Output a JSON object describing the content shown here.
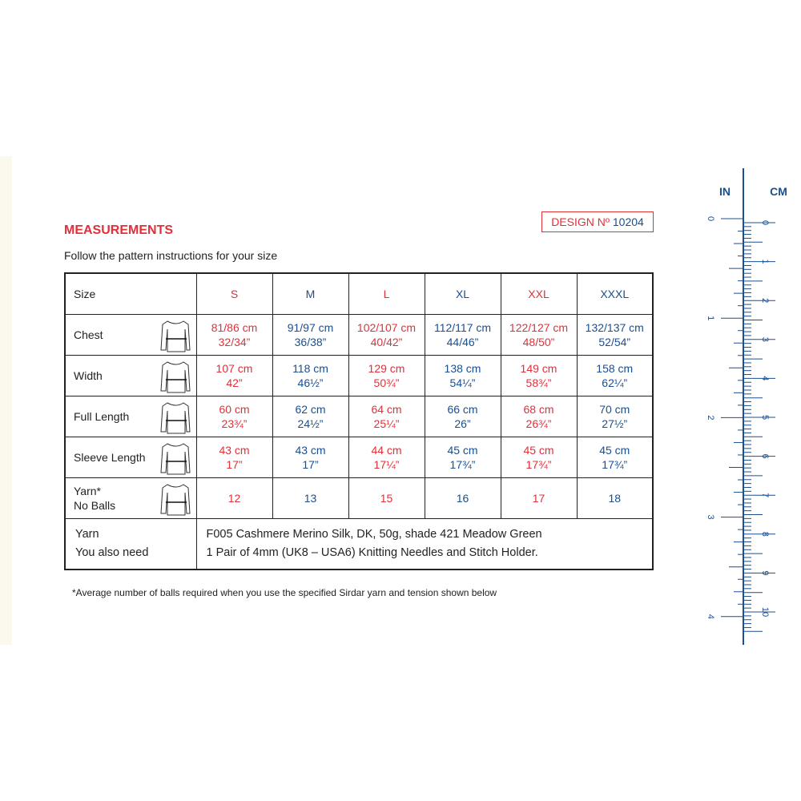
{
  "heading": "MEASUREMENTS",
  "design": {
    "label": "DESIGN Nº",
    "number": "10204"
  },
  "subtitle": "Follow the pattern instructions for your size",
  "table": {
    "header": [
      "Size",
      "S",
      "M",
      "L",
      "XL",
      "XXL",
      "XXXL"
    ],
    "rows": [
      {
        "label": [
          "Chest"
        ],
        "cells": [
          [
            "81/86 cm",
            "32/34”"
          ],
          [
            "91/97 cm",
            "36/38”"
          ],
          [
            "102/107 cm",
            "40/42”"
          ],
          [
            "112/117 cm",
            "44/46”"
          ],
          [
            "122/127 cm",
            "48/50”"
          ],
          [
            "132/137 cm",
            "52/54”"
          ]
        ]
      },
      {
        "label": [
          "Width"
        ],
        "cells": [
          [
            "107 cm",
            "42”"
          ],
          [
            "118 cm",
            "46½”"
          ],
          [
            "129 cm",
            "50¾”"
          ],
          [
            "138 cm",
            "54¼”"
          ],
          [
            "149 cm",
            "58¾”"
          ],
          [
            "158 cm",
            "62¼”"
          ]
        ]
      },
      {
        "label": [
          "Full Length"
        ],
        "cells": [
          [
            "60 cm",
            "23¾”"
          ],
          [
            "62 cm",
            "24½”"
          ],
          [
            "64 cm",
            "25¼”"
          ],
          [
            "66 cm",
            "26”"
          ],
          [
            "68 cm",
            "26¾”"
          ],
          [
            "70 cm",
            "27½”"
          ]
        ]
      },
      {
        "label": [
          "Sleeve Length"
        ],
        "cells": [
          [
            "43 cm",
            "17”"
          ],
          [
            "43 cm",
            "17”"
          ],
          [
            "44 cm",
            "17¼”"
          ],
          [
            "45 cm",
            "17¾”"
          ],
          [
            "45 cm",
            "17¾”"
          ],
          [
            "45 cm",
            "17¾”"
          ]
        ]
      },
      {
        "label": [
          "Yarn*",
          "No Balls"
        ],
        "cells": [
          [
            "12"
          ],
          [
            "13"
          ],
          [
            "15"
          ],
          [
            "16"
          ],
          [
            "17"
          ],
          [
            "18"
          ]
        ]
      }
    ],
    "yarn": {
      "labels": [
        "Yarn",
        "You also need"
      ],
      "lines": [
        "F005 Cashmere Merino Silk, DK, 50g, shade 421 Meadow Green",
        "1 Pair of 4mm (UK8 – USA6) Knitting Needles and Stitch Holder."
      ]
    }
  },
  "footnote": "*Average number of balls required when you use the specified Sirdar yarn and tension shown below",
  "ruler": {
    "in_label": "IN",
    "cm_label": "CM",
    "inches": [
      "0",
      "1",
      "2",
      "3",
      "4"
    ],
    "cm": [
      "0",
      "1",
      "2",
      "3",
      "4",
      "5",
      "6",
      "7",
      "8",
      "9",
      "10"
    ]
  }
}
